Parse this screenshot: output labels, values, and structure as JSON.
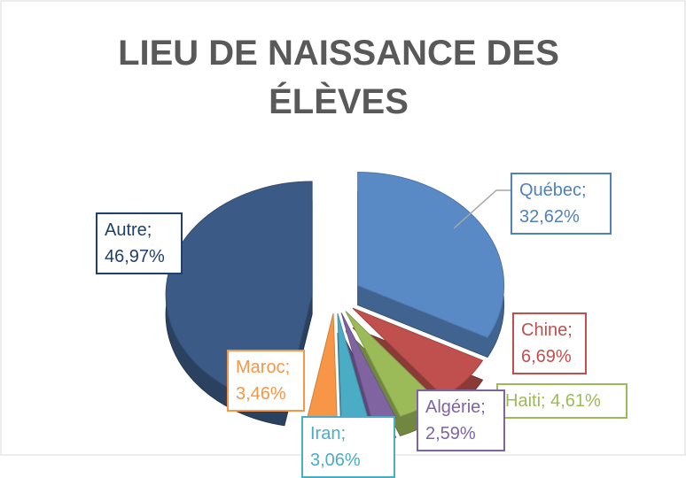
{
  "chart_data": {
    "type": "pie",
    "title": [
      "LIEU DE NAISSANCE DES",
      "ÉLÈVES"
    ],
    "values": [
      32.62,
      6.69,
      4.61,
      2.59,
      3.06,
      3.46,
      46.97
    ],
    "value_labels": [
      "Québec; 32,62%",
      "Chine; 6,69%",
      "Haiti; 4,61%",
      "Algérie; 2,59%",
      "Iran; 3,06%",
      "Maroc; 3,46%",
      "Autre; 46,97%"
    ],
    "colors": [
      "#5a8ac6",
      "#c0504d",
      "#9bbb59",
      "#8064a2",
      "#4bacc6",
      "#f79646",
      "#3c5a86"
    ],
    "label_colors": [
      "#4f81bd",
      "#c0504d",
      "#9bbb59",
      "#8064a2",
      "#4bacc6",
      "#f79646",
      "#1f3f6e"
    ]
  }
}
